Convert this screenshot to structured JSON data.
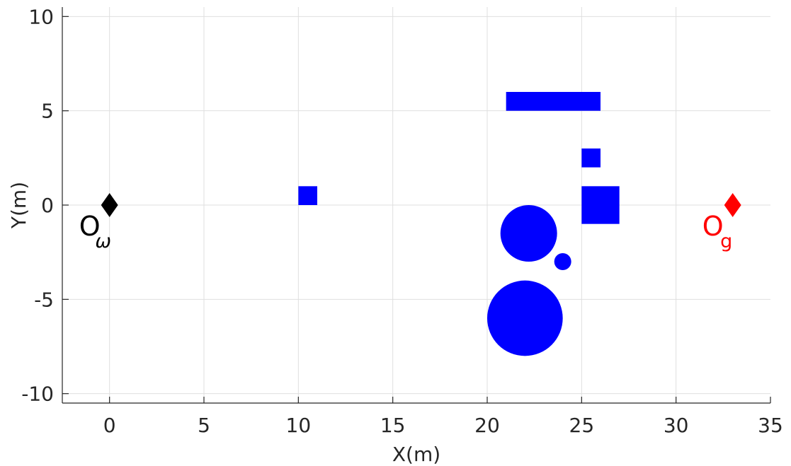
{
  "chart_data": {
    "type": "scatter",
    "title": "",
    "xlabel": "X(m)",
    "ylabel": "Y(m)",
    "xlim": [
      -2.5,
      35
    ],
    "ylim": [
      -10.5,
      10.5
    ],
    "xticks": [
      0,
      5,
      10,
      15,
      20,
      25,
      30,
      35
    ],
    "yticks": [
      10,
      5,
      0,
      -5,
      -10
    ],
    "xtick_labels": [
      "0",
      "5",
      "10",
      "15",
      "20",
      "25",
      "30",
      "35"
    ],
    "ytick_labels": [
      "10",
      "5",
      "0",
      "-5",
      "-10"
    ],
    "grid": true,
    "obstacle_color": "#0000ff",
    "rect_obstacles": [
      {
        "x_min": 21,
        "x_max": 26,
        "y_min": 5,
        "y_max": 6
      },
      {
        "x_min": 25,
        "x_max": 26,
        "y_min": 2,
        "y_max": 3
      },
      {
        "x_min": 10,
        "x_max": 11,
        "y_min": 0,
        "y_max": 1
      },
      {
        "x_min": 25,
        "x_max": 27,
        "y_min": -1,
        "y_max": 1
      }
    ],
    "circle_obstacles": [
      {
        "x": 22.2,
        "y": -1.5,
        "r": 1.5
      },
      {
        "x": 24,
        "y": -3,
        "r": 0.45
      },
      {
        "x": 22,
        "y": -6,
        "r": 2
      }
    ],
    "markers": [
      {
        "name": "start",
        "x": 0,
        "y": 0,
        "color": "#000000",
        "label_main": "O",
        "label_sub": "ω"
      },
      {
        "name": "goal",
        "x": 33,
        "y": 0,
        "color": "#ff0000",
        "label_main": "O",
        "label_sub": "g"
      }
    ]
  }
}
